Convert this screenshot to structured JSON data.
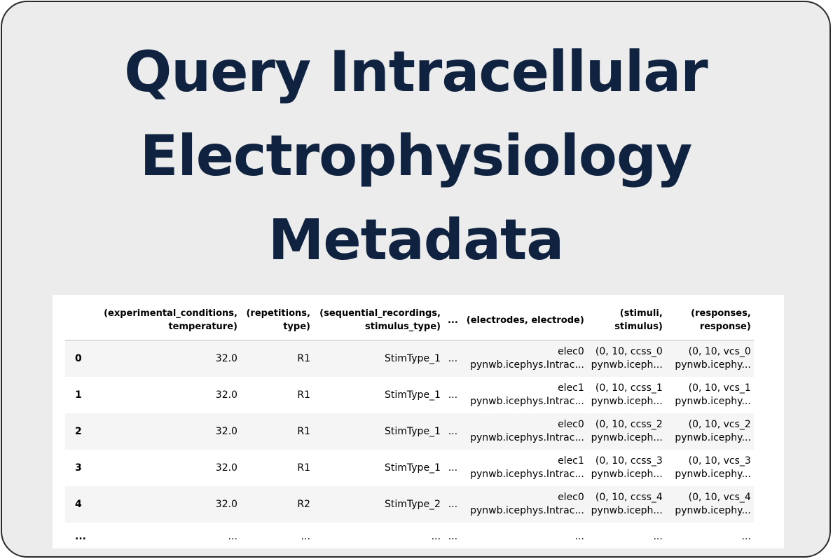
{
  "title": {
    "line1": "Query Intracellular",
    "line2": "Electrophysiology",
    "line3": "Metadata"
  },
  "table": {
    "headers": [
      {
        "l1": "",
        "l2": ""
      },
      {
        "l1": "(experimental_conditions,",
        "l2": "temperature)"
      },
      {
        "l1": "(repetitions,",
        "l2": "type)"
      },
      {
        "l1": "(sequential_recordings,",
        "l2": "stimulus_type)"
      },
      {
        "l1": "...",
        "l2": ""
      },
      {
        "l1": "(electrodes, electrode)",
        "l2": ""
      },
      {
        "l1": "(stimuli,",
        "l2": "stimulus)"
      },
      {
        "l1": "(responses,",
        "l2": "response)"
      }
    ],
    "rows": [
      {
        "index": "0",
        "temperature": "32.0",
        "type": "R1",
        "stimulus_type": "StimType_1",
        "ellipsis": "...",
        "electrode_l1": "elec0",
        "electrode_l2": "pynwb.icephys.Intrac...",
        "stimulus_l1": "(0, 10, ccss_0",
        "stimulus_l2": "pynwb.iceph...",
        "response_l1": "(0, 10, vcs_0",
        "response_l2": "pynwb.icephy..."
      },
      {
        "index": "1",
        "temperature": "32.0",
        "type": "R1",
        "stimulus_type": "StimType_1",
        "ellipsis": "...",
        "electrode_l1": "elec1",
        "electrode_l2": "pynwb.icephys.Intrac...",
        "stimulus_l1": "(0, 10, ccss_1",
        "stimulus_l2": "pynwb.iceph...",
        "response_l1": "(0, 10, vcs_1",
        "response_l2": "pynwb.icephy..."
      },
      {
        "index": "2",
        "temperature": "32.0",
        "type": "R1",
        "stimulus_type": "StimType_1",
        "ellipsis": "...",
        "electrode_l1": "elec0",
        "electrode_l2": "pynwb.icephys.Intrac...",
        "stimulus_l1": "(0, 10, ccss_2",
        "stimulus_l2": "pynwb.iceph...",
        "response_l1": "(0, 10, vcs_2",
        "response_l2": "pynwb.icephy..."
      },
      {
        "index": "3",
        "temperature": "32.0",
        "type": "R1",
        "stimulus_type": "StimType_1",
        "ellipsis": "...",
        "electrode_l1": "elec1",
        "electrode_l2": "pynwb.icephys.Intrac...",
        "stimulus_l1": "(0, 10, ccss_3",
        "stimulus_l2": "pynwb.iceph...",
        "response_l1": "(0, 10, vcs_3",
        "response_l2": "pynwb.icephy..."
      },
      {
        "index": "4",
        "temperature": "32.0",
        "type": "R2",
        "stimulus_type": "StimType_2",
        "ellipsis": "...",
        "electrode_l1": "elec0",
        "electrode_l2": "pynwb.icephys.Intrac...",
        "stimulus_l1": "(0, 10, ccss_4",
        "stimulus_l2": "pynwb.iceph...",
        "response_l1": "(0, 10, vcs_4",
        "response_l2": "pynwb.icephy..."
      }
    ],
    "ellipsis_row": [
      "...",
      "...",
      "...",
      "...",
      "...",
      "...",
      "...",
      "..."
    ]
  },
  "colors": {
    "title": "#0f2340",
    "card_background": "#ececec",
    "row_stripe": "#f5f5f5"
  }
}
